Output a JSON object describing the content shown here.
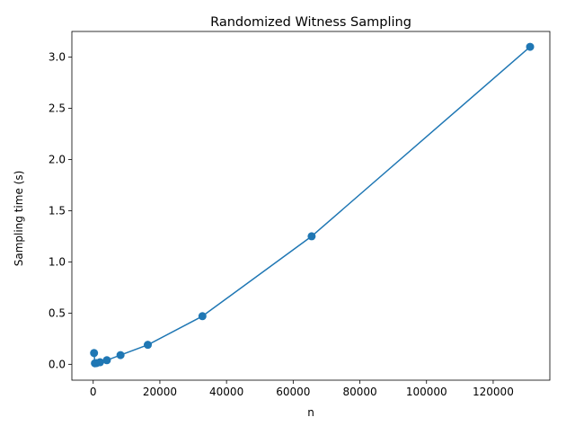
{
  "chart_data": {
    "type": "line",
    "title": "Randomized Witness Sampling",
    "xlabel": "n",
    "ylabel": "Sampling time (s)",
    "xlim": [
      -6400,
      137000
    ],
    "ylim": [
      -0.155,
      3.25
    ],
    "xticks": [
      0,
      20000,
      40000,
      60000,
      80000,
      100000,
      120000
    ],
    "xtick_labels": [
      "0",
      "20000",
      "40000",
      "60000",
      "80000",
      "100000",
      "120000"
    ],
    "yticks": [
      0.0,
      0.5,
      1.0,
      1.5,
      2.0,
      2.5,
      3.0
    ],
    "ytick_labels": [
      "0.0",
      "0.5",
      "1.0",
      "1.5",
      "2.0",
      "2.5",
      "3.0"
    ],
    "grid": false,
    "legend": false,
    "series": [
      {
        "color": "#1f77b4",
        "marker": "circle",
        "x": [
          256,
          512,
          1024,
          2048,
          4096,
          8192,
          16384,
          32768,
          65536,
          131072
        ],
        "y": [
          0.11,
          0.01,
          0.012,
          0.02,
          0.04,
          0.09,
          0.19,
          0.47,
          1.25,
          3.1
        ]
      }
    ]
  }
}
